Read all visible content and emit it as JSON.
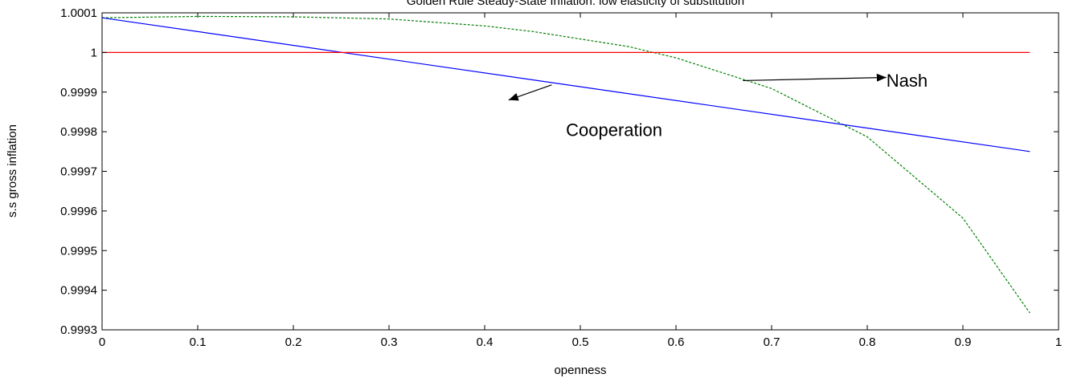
{
  "chart_data": {
    "type": "line",
    "title": "Golden Rule Steady-State Inflation: low elasticity of substitution",
    "xlabel": "openness",
    "ylabel": "s.s gross inflation",
    "xlim": [
      0,
      1
    ],
    "ylim": [
      0.9993,
      1.0001
    ],
    "xticks": [
      0,
      0.1,
      0.2,
      0.3,
      0.4,
      0.5,
      0.6,
      0.7,
      0.8,
      0.9,
      1
    ],
    "xtick_labels": [
      "0",
      "0.1",
      "0.2",
      "0.3",
      "0.4",
      "0.5",
      "0.6",
      "0.7",
      "0.8",
      "0.9",
      "1"
    ],
    "yticks": [
      0.9993,
      0.9994,
      0.9995,
      0.9996,
      0.9997,
      0.9998,
      0.9999,
      1,
      1.0001
    ],
    "ytick_labels": [
      "0.9993",
      "0.9994",
      "0.9995",
      "0.9996",
      "0.9997",
      "0.9998",
      "0.9999",
      "1",
      "1.0001"
    ],
    "grid": false,
    "series": [
      {
        "name": "Nash",
        "color": "#008000",
        "dash": "dashed",
        "x": [
          0,
          0.1,
          0.2,
          0.3,
          0.4,
          0.45,
          0.55,
          0.6,
          0.7,
          0.8,
          0.9,
          0.97
        ],
        "y": [
          1.0000875,
          1.000091,
          1.00009,
          1.0000845,
          1.000067,
          1.000053,
          1.000015,
          0.9999865,
          0.999909,
          0.999787,
          0.999582,
          0.9993425
        ]
      },
      {
        "color": "#0000ff",
        "dash": "solid",
        "x": [
          0,
          0.97
        ],
        "y": [
          1.0000875,
          0.99975
        ]
      },
      {
        "color": "#ff0000",
        "dash": "solid",
        "x": [
          0,
          0.97
        ],
        "y": [
          1.0,
          1.0
        ]
      }
    ],
    "annotations": [
      {
        "text": "Nash",
        "text_x": 0.82,
        "text_y": 0.99993,
        "arrow_from": [
          0.67,
          0.999929
        ],
        "arrow_to": [
          0.82,
          0.999937
        ]
      },
      {
        "text": "Cooperation",
        "text_x": 0.485,
        "text_y": 0.999805,
        "arrow_from": [
          0.47,
          0.999918
        ],
        "arrow_to": [
          0.425,
          0.99988
        ]
      }
    ]
  }
}
